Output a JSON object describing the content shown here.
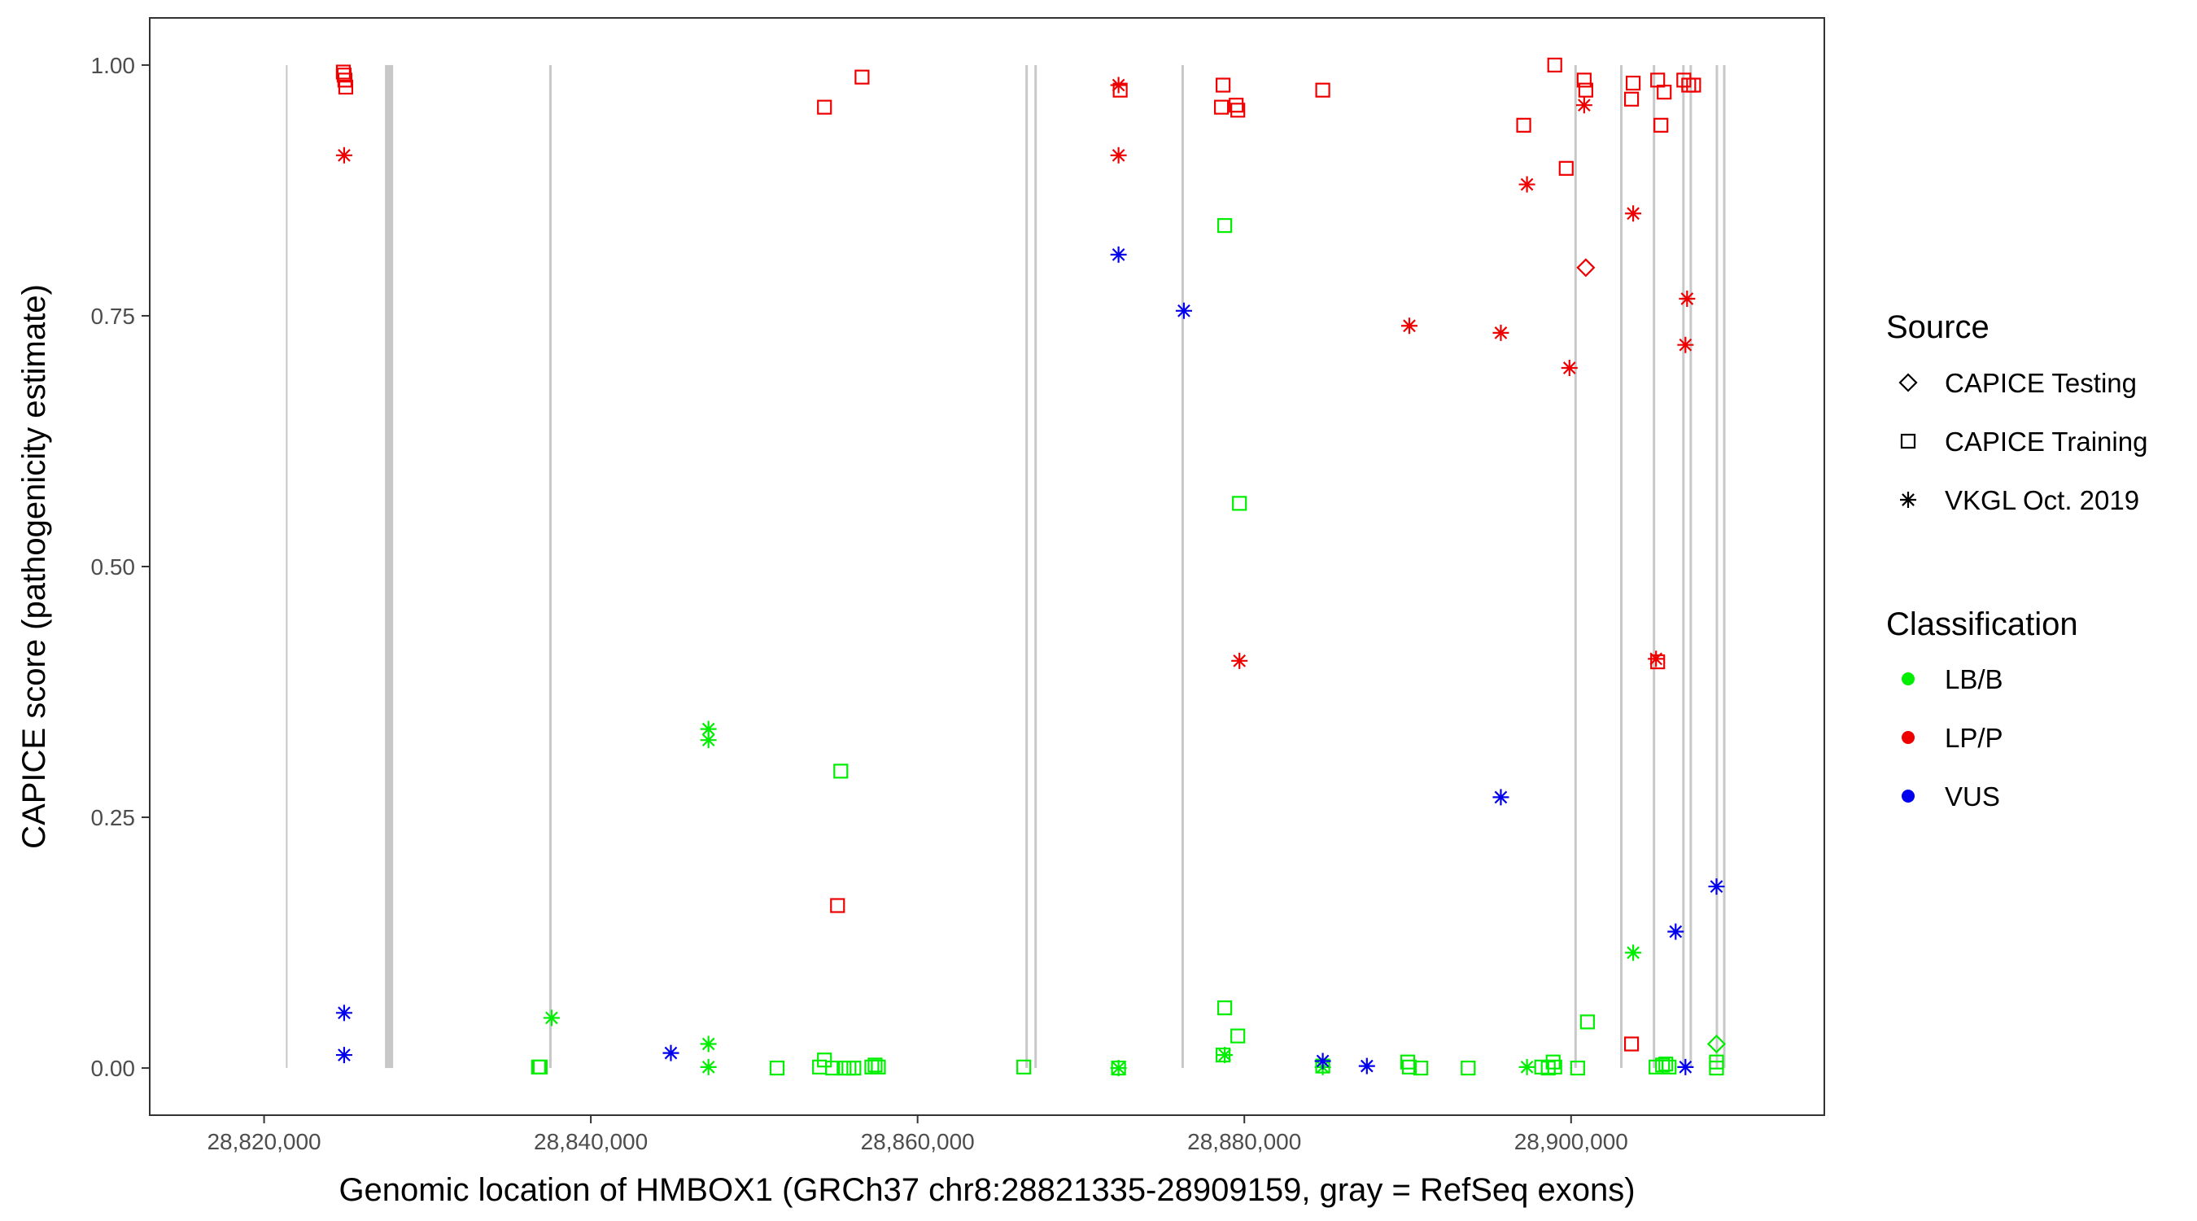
{
  "chart_data": {
    "type": "scatter",
    "title": "",
    "xlabel": "Genomic location of HMBOX1 (GRCh37 chr8:28821335-28909159, gray = RefSeq exons)",
    "ylabel": "CAPICE score (pathogenicity estimate)",
    "xlim": [
      28813000,
      28915500
    ],
    "ylim": [
      -0.047,
      1.047
    ],
    "x_ticks": [
      {
        "value": 28820000,
        "label": "28,820,000"
      },
      {
        "value": 28840000,
        "label": "28,840,000"
      },
      {
        "value": 28860000,
        "label": "28,860,000"
      },
      {
        "value": 28880000,
        "label": "28,880,000"
      },
      {
        "value": 28900000,
        "label": "28,900,000"
      }
    ],
    "y_ticks": [
      {
        "value": 0.0,
        "label": "0.00"
      },
      {
        "value": 0.25,
        "label": "0.25"
      },
      {
        "value": 0.5,
        "label": "0.50"
      },
      {
        "value": 0.75,
        "label": "0.75"
      },
      {
        "value": 1.0,
        "label": "1.00"
      }
    ],
    "grid": false,
    "legend_position": "right",
    "exons": [
      {
        "start": 28821335,
        "end": 28821400
      },
      {
        "start": 28827400,
        "end": 28827900
      },
      {
        "start": 28837450,
        "end": 28837600
      },
      {
        "start": 28866600,
        "end": 28866750
      },
      {
        "start": 28867150,
        "end": 28867300
      },
      {
        "start": 28876150,
        "end": 28876300
      },
      {
        "start": 28900200,
        "end": 28900350
      },
      {
        "start": 28903000,
        "end": 28903150
      },
      {
        "start": 28905000,
        "end": 28905150
      },
      {
        "start": 28906800,
        "end": 28906950
      },
      {
        "start": 28907250,
        "end": 28907400
      },
      {
        "start": 28908850,
        "end": 28909000
      },
      {
        "start": 28909300,
        "end": 28909450
      }
    ],
    "legend": {
      "source": {
        "title": "Source",
        "items": [
          {
            "label": "CAPICE Testing",
            "shape": "diamond"
          },
          {
            "label": "CAPICE Training",
            "shape": "square"
          },
          {
            "label": "VKGL Oct. 2019",
            "shape": "asterisk"
          }
        ]
      },
      "classification": {
        "title": "Classification",
        "items": [
          {
            "label": "LB/B",
            "color": "#00ee00"
          },
          {
            "label": "LP/P",
            "color": "#ee0000"
          },
          {
            "label": "VUS",
            "color": "#0000ee"
          }
        ]
      }
    },
    "series": [
      {
        "source": "CAPICE Training",
        "classification": "LP/P",
        "points": [
          [
            28824900,
            0.99
          ],
          [
            28824950,
            0.985
          ],
          [
            28825000,
            0.978
          ],
          [
            28824850,
            0.993
          ],
          [
            28854300,
            0.958
          ],
          [
            28856600,
            0.988
          ],
          [
            28855100,
            0.162
          ],
          [
            28872400,
            0.975
          ],
          [
            28878700,
            0.98
          ],
          [
            28878600,
            0.958
          ],
          [
            28879500,
            0.96
          ],
          [
            28879600,
            0.955
          ],
          [
            28884800,
            0.975
          ],
          [
            28897100,
            0.94
          ],
          [
            28899000,
            1.0
          ],
          [
            28899700,
            0.897
          ],
          [
            28900800,
            0.985
          ],
          [
            28900900,
            0.975
          ],
          [
            28903800,
            0.982
          ],
          [
            28903700,
            0.966
          ],
          [
            28905300,
            0.985
          ],
          [
            28905500,
            0.94
          ],
          [
            28905700,
            0.973
          ],
          [
            28906900,
            0.985
          ],
          [
            28907200,
            0.98
          ],
          [
            28907500,
            0.98
          ],
          [
            28903700,
            0.024
          ],
          [
            28905300,
            0.405
          ]
        ]
      },
      {
        "source": "CAPICE Training",
        "classification": "LB/B",
        "points": [
          [
            28836800,
            0.001
          ],
          [
            28836900,
            0.001
          ],
          [
            28851400,
            0.0
          ],
          [
            28854000,
            0.001
          ],
          [
            28854300,
            0.008
          ],
          [
            28854800,
            0.0
          ],
          [
            28855300,
            0.296
          ],
          [
            28855500,
            0.0
          ],
          [
            28855800,
            0.0
          ],
          [
            28856100,
            0.0
          ],
          [
            28857200,
            0.001
          ],
          [
            28857400,
            0.003
          ],
          [
            28857600,
            0.001
          ],
          [
            28866500,
            0.001
          ],
          [
            28872300,
            0.0
          ],
          [
            28878800,
            0.84
          ],
          [
            28878800,
            0.06
          ],
          [
            28879600,
            0.032
          ],
          [
            28879700,
            0.563
          ],
          [
            28878700,
            0.013
          ],
          [
            28884800,
            0.002
          ],
          [
            28890000,
            0.006
          ],
          [
            28890100,
            0.001
          ],
          [
            28890800,
            0.0
          ],
          [
            28893700,
            0.0
          ],
          [
            28898200,
            0.001
          ],
          [
            28898600,
            0.0
          ],
          [
            28898900,
            0.006
          ],
          [
            28899000,
            0.001
          ],
          [
            28900400,
            0.0
          ],
          [
            28901000,
            0.046
          ],
          [
            28905200,
            0.001
          ],
          [
            28905600,
            0.003
          ],
          [
            28905800,
            0.004
          ],
          [
            28906000,
            0.001
          ],
          [
            28908900,
            0.006
          ],
          [
            28908900,
            0.0
          ]
        ]
      },
      {
        "source": "VKGL Oct. 2019",
        "classification": "LP/P",
        "points": [
          [
            28824900,
            0.91
          ],
          [
            28872300,
            0.98
          ],
          [
            28872300,
            0.91
          ],
          [
            28879700,
            0.406
          ],
          [
            28890100,
            0.74
          ],
          [
            28895700,
            0.733
          ],
          [
            28897300,
            0.881
          ],
          [
            28899900,
            0.698
          ],
          [
            28900800,
            0.96
          ],
          [
            28903800,
            0.852
          ],
          [
            28905200,
            0.408
          ],
          [
            28907100,
            0.767
          ],
          [
            28907000,
            0.721
          ]
        ]
      },
      {
        "source": "VKGL Oct. 2019",
        "classification": "LB/B",
        "points": [
          [
            28837600,
            0.05
          ],
          [
            28847200,
            0.338
          ],
          [
            28847200,
            0.327
          ],
          [
            28847200,
            0.024
          ],
          [
            28847200,
            0.001
          ],
          [
            28872300,
            0.0
          ],
          [
            28878800,
            0.013
          ],
          [
            28884800,
            0.001
          ],
          [
            28897300,
            0.001
          ],
          [
            28903800,
            0.115
          ]
        ]
      },
      {
        "source": "VKGL Oct. 2019",
        "classification": "VUS",
        "points": [
          [
            28824900,
            0.055
          ],
          [
            28824900,
            0.013
          ],
          [
            28844900,
            0.015
          ],
          [
            28872300,
            0.811
          ],
          [
            28876300,
            0.755
          ],
          [
            28884800,
            0.007
          ],
          [
            28887500,
            0.002
          ],
          [
            28895700,
            0.27
          ],
          [
            28906400,
            0.136
          ],
          [
            28907000,
            0.001
          ],
          [
            28908900,
            0.181
          ]
        ]
      },
      {
        "source": "CAPICE Testing",
        "classification": "LP/P",
        "points": [
          [
            28900900,
            0.798
          ]
        ]
      },
      {
        "source": "CAPICE Testing",
        "classification": "LB/B",
        "points": [
          [
            28908900,
            0.024
          ]
        ]
      }
    ]
  }
}
